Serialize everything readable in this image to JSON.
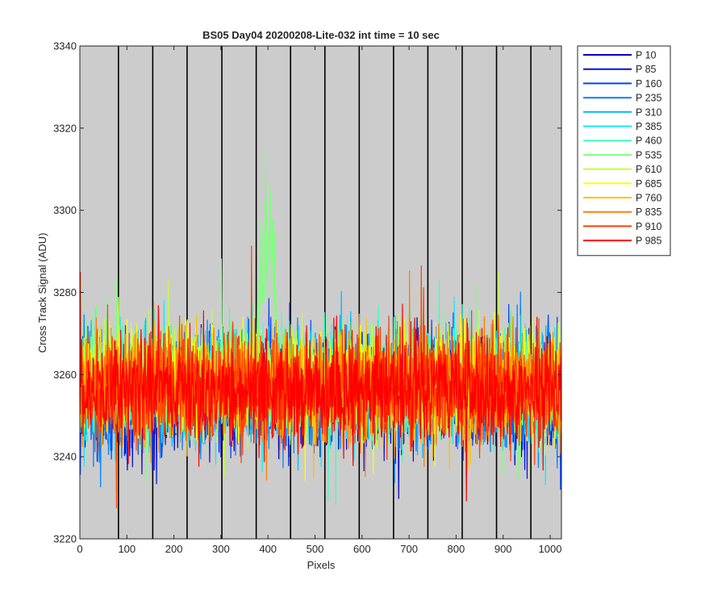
{
  "chart_data": {
    "type": "line",
    "title": "BS05 Day04 20200208-Lite-032 int time = 10 sec",
    "xlabel": "Pixels",
    "ylabel": "Cross Track Signal (ADU)",
    "xlim": [
      0,
      1024
    ],
    "ylim": [
      3220,
      3340
    ],
    "xticks": [
      0,
      100,
      200,
      300,
      400,
      500,
      600,
      700,
      800,
      900,
      1000
    ],
    "yticks": [
      3220,
      3240,
      3260,
      3280,
      3300,
      3320,
      3340
    ],
    "xtick_labels": [
      "0",
      "100",
      "200",
      "300",
      "400",
      "500",
      "600",
      "700",
      "800",
      "900",
      "1000"
    ],
    "ytick_labels": [
      "3220",
      "3240",
      "3260",
      "3280",
      "3300",
      "3320",
      "3340"
    ],
    "vertical_lines_x": [
      82,
      155,
      228,
      302,
      375,
      448,
      521,
      594,
      667,
      740,
      813,
      886,
      959
    ],
    "background_color": "#cccccc",
    "grid": false,
    "legend_position": "outside-right",
    "noise_band": "approximately 3245 to 3270 for all series, with individual excursions down to about 3226 and up to about 3288",
    "peak": {
      "series": "P 535",
      "x_range": [
        355,
        440
      ],
      "center": 400,
      "max_value": 3327
    },
    "series": [
      {
        "name": "P 10",
        "color": "#0000c0",
        "mean": 3256
      },
      {
        "name": "P 85",
        "color": "#0010e0",
        "mean": 3256
      },
      {
        "name": "P 160",
        "color": "#0040ff",
        "mean": 3256
      },
      {
        "name": "P 235",
        "color": "#0080ff",
        "mean": 3256
      },
      {
        "name": "P 310",
        "color": "#00b8ff",
        "mean": 3257
      },
      {
        "name": "P 385",
        "color": "#10ecf0",
        "mean": 3257
      },
      {
        "name": "P 460",
        "color": "#40ffc0",
        "mean": 3258
      },
      {
        "name": "P 535",
        "color": "#80ff80",
        "mean": 3258
      },
      {
        "name": "P 610",
        "color": "#c0ff40",
        "mean": 3258
      },
      {
        "name": "P 685",
        "color": "#ffff00",
        "mean": 3258
      },
      {
        "name": "P 760",
        "color": "#ffc000",
        "mean": 3257
      },
      {
        "name": "P 835",
        "color": "#ff8000",
        "mean": 3257
      },
      {
        "name": "P 910",
        "color": "#ff4000",
        "mean": 3257
      },
      {
        "name": "P 985",
        "color": "#ff0000",
        "mean": 3256
      }
    ]
  }
}
